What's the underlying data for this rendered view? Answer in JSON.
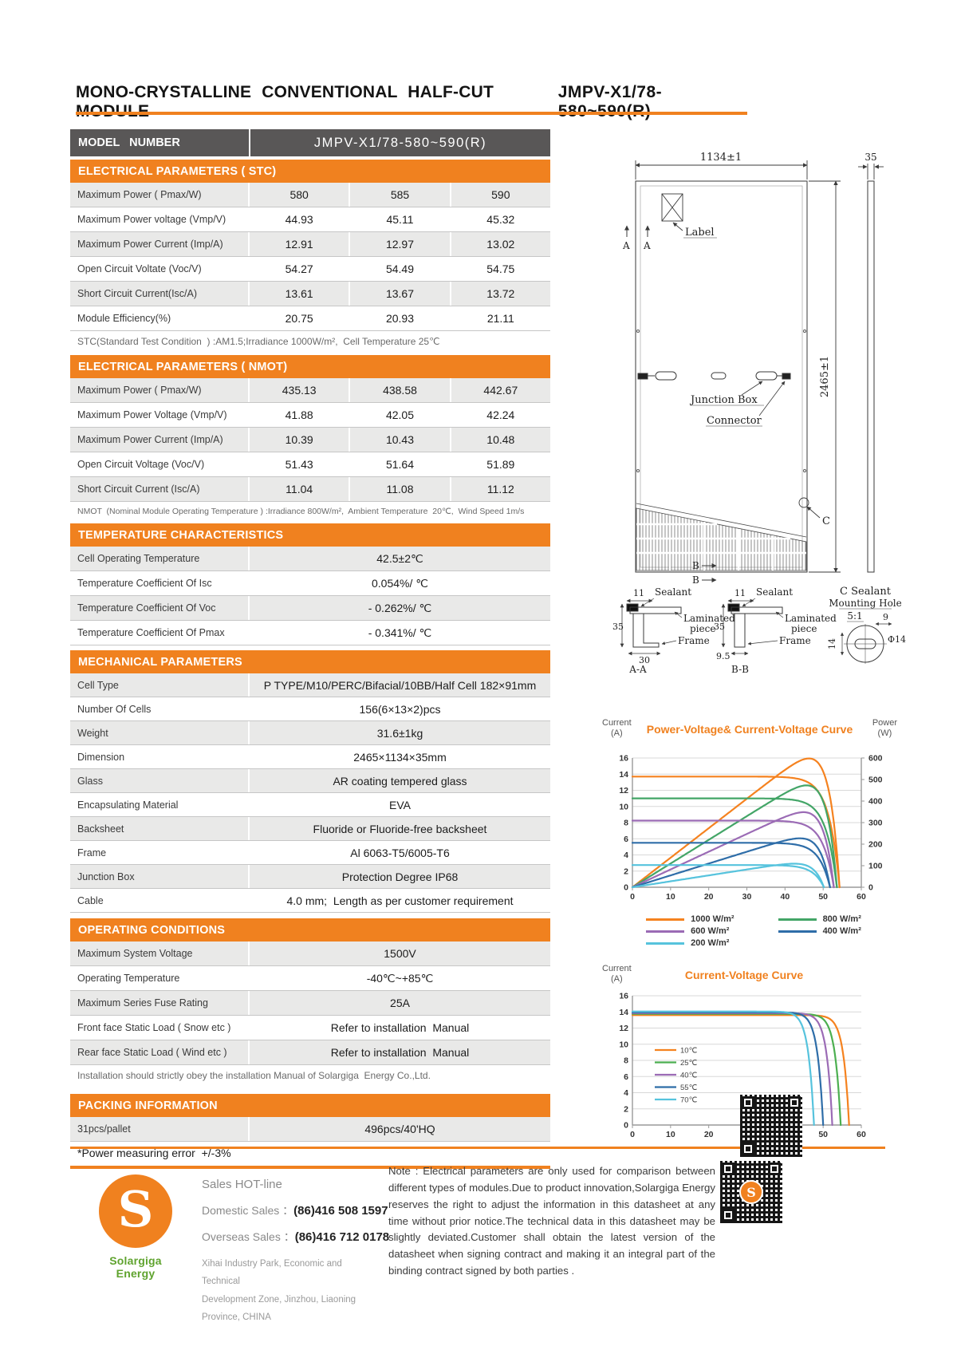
{
  "page": {
    "title_left": "MONO-CRYSTALLINE CONVENTIONAL HALF-CUT MODULE",
    "title_right": "JMPV-X1/78-580~590(R)"
  },
  "model": {
    "label": "MODEL   NUMBER",
    "value": "JMPV-X1/78-580~590(R)"
  },
  "stc": {
    "header": "ELECTRICAL PARAMETERS ( STC)",
    "rows": [
      {
        "label": "Maximum Power ( Pmax/W)",
        "values": [
          "580",
          "585",
          "590"
        ]
      },
      {
        "label": "Maximum Power voltage (Vmp/V)",
        "values": [
          "44.93",
          "45.11",
          "45.32"
        ]
      },
      {
        "label": "Maximum Power Current (Imp/A)",
        "values": [
          "12.91",
          "12.97",
          "13.02"
        ]
      },
      {
        "label": "Open Circuit Voltate (Voc/V)",
        "values": [
          "54.27",
          "54.49",
          "54.75"
        ]
      },
      {
        "label": "Short Circuit Current(Isc/A)",
        "values": [
          "13.61",
          "13.67",
          "13.72"
        ]
      },
      {
        "label": "Module Efficiency(%)",
        "values": [
          "20.75",
          "20.93",
          "21.11"
        ]
      }
    ],
    "note": "STC(Standard Test Condition  ) :AM1.5;Irradiance 1000W/m²,  Cell Temperature 25℃"
  },
  "nmot": {
    "header": "ELECTRICAL PARAMETERS ( NMOT)",
    "rows": [
      {
        "label": "Maximum Power ( Pmax/W)",
        "values": [
          "435.13",
          "438.58",
          "442.67"
        ]
      },
      {
        "label": "Maximum Power Voltage (Vmp/V)",
        "values": [
          "41.88",
          "42.05",
          "42.24"
        ]
      },
      {
        "label": "Maximum Power Current (Imp/A)",
        "values": [
          "10.39",
          "10.43",
          "10.48"
        ]
      },
      {
        "label": "Open Circuit Voltage (Voc/V)",
        "values": [
          "51.43",
          "51.64",
          "51.89"
        ]
      },
      {
        "label": "Short Circuit Current (Isc/A)",
        "values": [
          "11.04",
          "11.08",
          "11.12"
        ]
      }
    ],
    "note": "NMOT  (Nominal Module Operating Temperature ) :Irradiance 800W/m²,  Ambient Temperature  20℃,  Wind Speed 1m/s"
  },
  "temperature": {
    "header": "TEMPERATURE CHARACTERISTICS",
    "rows": [
      {
        "label": "Cell Operating Temperature",
        "value": "42.5±2℃"
      },
      {
        "label": "Temperature Coefficient Of Isc",
        "value": "0.054%/ ℃"
      },
      {
        "label": "Temperature Coefficient Of Voc",
        "value": "- 0.262%/ ℃"
      },
      {
        "label": "Temperature Coefficient Of Pmax",
        "value": "- 0.341%/ ℃"
      }
    ]
  },
  "mechanical": {
    "header": "MECHANICAL PARAMETERS",
    "rows": [
      {
        "label": "Cell Type",
        "value": "P TYPE/M10/PERC/Bifacial/10BB/Half Cell 182×91mm"
      },
      {
        "label": "Number Of Cells",
        "value": "156(6×13×2)pcs"
      },
      {
        "label": "Weight",
        "value": "31.6±1kg"
      },
      {
        "label": "Dimension",
        "value": "2465×1134×35mm"
      },
      {
        "label": "Glass",
        "value": "AR coating tempered glass"
      },
      {
        "label": "Encapsulating Material",
        "value": "EVA"
      },
      {
        "label": "Backsheet",
        "value": "Fluoride or Fluoride-free backsheet"
      },
      {
        "label": "Frame",
        "value": "Al 6063-T5/6005-T6"
      },
      {
        "label": "Junction Box",
        "value": "Protection Degree IP68"
      },
      {
        "label": "Cable",
        "value": "4.0 mm;  Length as per customer requirement"
      }
    ]
  },
  "operating": {
    "header": "OPERATING CONDITIONS",
    "rows": [
      {
        "label": "Maximum System Voltage",
        "value": "1500V"
      },
      {
        "label": "Operating Temperature",
        "value": "-40℃~+85℃"
      },
      {
        "label": "Maximum Series Fuse Rating",
        "value": "25A"
      },
      {
        "label": "Front face Static Load ( Snow etc )",
        "value": "Refer to installation  Manual"
      },
      {
        "label": "Rear face Static Load ( Wind etc )",
        "value": "Refer to installation  Manual"
      }
    ],
    "note": "Installation should strictly obey the installation Manual of Solargiga  Energy Co.,Ltd."
  },
  "packing": {
    "header": "PACKING INFORMATION",
    "rows": [
      {
        "label": "31pcs/pallet",
        "value": "496pcs/40'HQ"
      }
    ],
    "note": "*Power measuring error  +/-3%"
  },
  "drawing": {
    "dim_width": "1134±1",
    "dim_thickness": "35",
    "dim_height": "2465±1",
    "label": "Label",
    "marker_a": "A",
    "junction_box": "Junction Box",
    "connector": "Connector",
    "marker_c": "C",
    "marker_b": "B",
    "sealant": "Sealant",
    "laminated_1": "Laminated",
    "laminated_2": "piece",
    "frame": "Frame",
    "dim_11": "11",
    "dim_35": "35",
    "dim_30": "30",
    "dim_95": "9.5",
    "section_aa": "A-A",
    "section_bb": "B-B",
    "c_sealant": "C Sealant",
    "mounting_hole": "Mounting Hole",
    "scale": "5:1",
    "dim_9": "9",
    "dim_phi14": "Φ14",
    "dim_14": "14"
  },
  "chart_data": [
    {
      "type": "line",
      "title": "Power-Voltage& Current-Voltage Curve",
      "y_label": "Current",
      "y_unit": "(A)",
      "y2_label": "Power",
      "y2_unit": "(W)",
      "x_range": [
        0,
        60
      ],
      "x_step": 10,
      "y_range": [
        0,
        16
      ],
      "y_step": 2,
      "y2_range": [
        0,
        600
      ],
      "y2_step": 100,
      "grid": "horizontal",
      "legend_position": "bottom",
      "curves": [
        "iv",
        "pv"
      ],
      "series": [
        {
          "name": "1000 W/m²",
          "color": "#F5821F",
          "isc": 13.7,
          "voc": 54.3,
          "vmp": 44.9,
          "pmax": 590
        },
        {
          "name": "800 W/m²",
          "color": "#43A567",
          "isc": 11.0,
          "voc": 53.6,
          "vmp": 44.6,
          "pmax": 470
        },
        {
          "name": "600 W/m²",
          "color": "#9B6BB5",
          "isc": 8.25,
          "voc": 52.8,
          "vmp": 44.2,
          "pmax": 352
        },
        {
          "name": "400 W/m²",
          "color": "#2E6DA8",
          "isc": 5.5,
          "voc": 51.8,
          "vmp": 43.5,
          "pmax": 232
        },
        {
          "name": "200 W/m²",
          "color": "#56C3DD",
          "isc": 2.75,
          "voc": 50.2,
          "vmp": 42.5,
          "pmax": 112
        }
      ]
    },
    {
      "type": "line",
      "title": "Current-Voltage Curve",
      "y_label": "Current",
      "y_unit": "(A)",
      "x_range": [
        0,
        60
      ],
      "x_step": 10,
      "y_range": [
        0,
        16
      ],
      "y_step": 2,
      "grid": "horizontal",
      "legend_position": "inside-left",
      "curves": [
        "iv"
      ],
      "series": [
        {
          "name": "10℃",
          "color": "#F5821F",
          "isc": 13.6,
          "voc": 56.8
        },
        {
          "name": "25℃",
          "color": "#4CAF50",
          "isc": 13.75,
          "voc": 54.6
        },
        {
          "name": "40℃",
          "color": "#9B6BB5",
          "isc": 13.85,
          "voc": 52.4
        },
        {
          "name": "55℃",
          "color": "#2E6DA8",
          "isc": 13.95,
          "voc": 50.0
        },
        {
          "name": "70℃",
          "color": "#56C3DD",
          "isc": 14.05,
          "voc": 47.6
        }
      ]
    }
  ],
  "footer": {
    "logo_letter": "S",
    "logo_text": "Solargiga Energy",
    "hotline": "Sales HOT-line",
    "domestic_label": "Domestic Sales ：",
    "domestic_phone": "(86)416 508 1597",
    "overseas_label": "Overseas Sales ：",
    "overseas_phone": "(86)416 712 0178",
    "address_1": "Xihai Industry Park, Economic and Technical",
    "address_2": "Development  Zone, Jinzhou, Liaoning",
    "address_3": "Province, CHINA",
    "note": "Note :  Electrical parameters are only used for comparison between different types of modules.Due to product innovation,Solargiga Energy reserves the right to adjust the information in this datasheet at any time without prior notice.The technical data in this datasheet may be slightly deviated.Customer shall obtain the latest version of the datasheet when signing contract and making it an integral part of the binding contract signed by both parties ."
  },
  "colors": {
    "accent_orange": "#F0811F",
    "header_dark": "#595757",
    "row_gray": "#E9E9E8"
  }
}
